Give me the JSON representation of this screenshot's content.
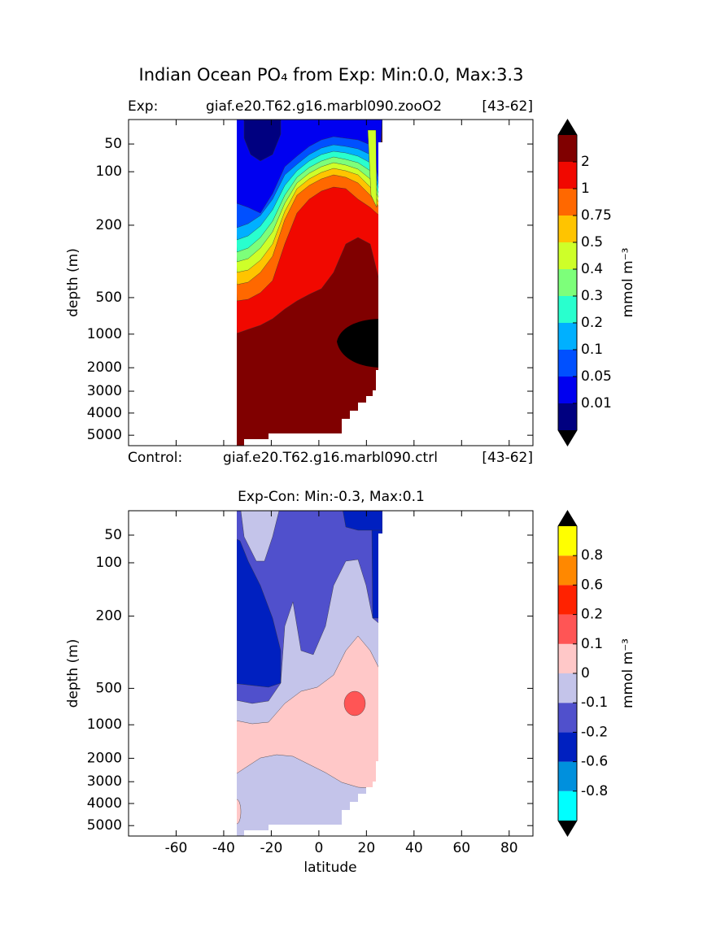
{
  "chart_data": [
    {
      "type": "contour",
      "title": "Indian Ocean PO₄ from Exp: Min:0.0, Max:3.3",
      "subtitle_left": "Exp:",
      "subtitle_center": "giaf.e20.T62.g16.marbl090.zooO2",
      "subtitle_right": "[43-62]",
      "ylabel": "depth (m)",
      "xlim": [
        -80,
        90
      ],
      "xticks": [
        -60,
        -40,
        -20,
        0,
        20,
        40,
        60,
        80
      ],
      "xtick_labels": false,
      "ylim": [
        5,
        5500
      ],
      "yticks": [
        50,
        100,
        200,
        500,
        1000,
        2000,
        3000,
        4000,
        5000
      ],
      "colorbar": {
        "label": "mmol m⁻³",
        "levels": [
          0.01,
          0.05,
          0.1,
          0.2,
          0.3,
          0.4,
          0.5,
          0.75,
          1,
          2
        ],
        "colors": [
          "#000080",
          "#0000f0",
          "#0050ff",
          "#00b0ff",
          "#29ffce",
          "#7dff7a",
          "#ceff29",
          "#ffc400",
          "#ff6800",
          "#f10800",
          "#800000"
        ],
        "extend_color": "#000000"
      }
    },
    {
      "type": "contour",
      "title": "Exp-Con: Min:-0.3, Max:0.1",
      "subtitle_left": "Control:",
      "subtitle_center": "giaf.e20.T62.g16.marbl090.ctrl",
      "subtitle_right": "[43-62]",
      "xlabel": "latitude",
      "ylabel": "depth (m)",
      "xlim": [
        -80,
        90
      ],
      "xticks": [
        -60,
        -40,
        -20,
        0,
        20,
        40,
        60,
        80
      ],
      "xtick_labels": true,
      "ylim": [
        5,
        5500
      ],
      "yticks": [
        50,
        100,
        200,
        500,
        1000,
        2000,
        3000,
        4000,
        5000
      ],
      "colorbar": {
        "label": "mmol m⁻³",
        "levels": [
          -0.8,
          -0.6,
          -0.2,
          -0.1,
          0,
          0.1,
          0.2,
          0.6,
          0.8
        ],
        "colors": [
          "#00ffff",
          "#0090dd",
          "#0020c0",
          "#5050cc",
          "#c4c4ea",
          "#ffc8c8",
          "#ff5555",
          "#ff2200",
          "#ff8800",
          "#ffff00"
        ],
        "extend_color": "#000000"
      }
    }
  ]
}
